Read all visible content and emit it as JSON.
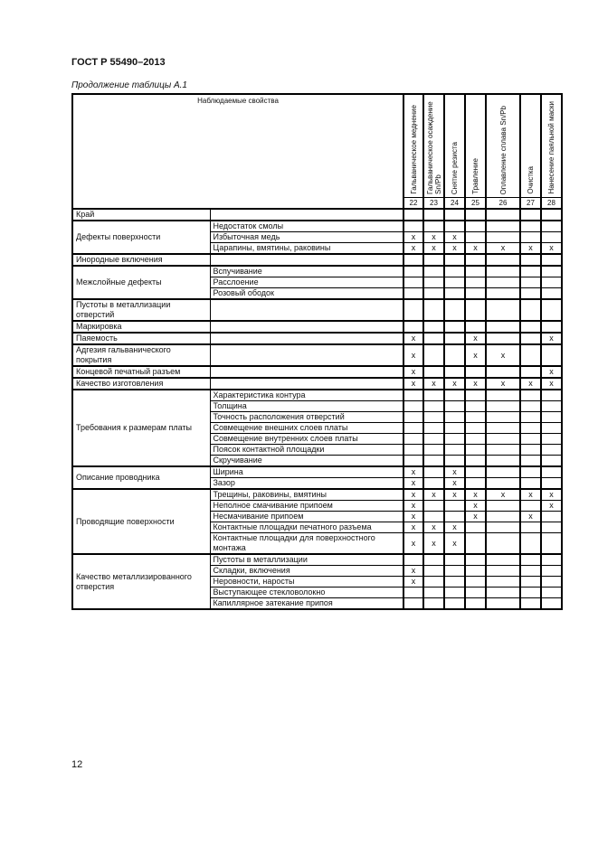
{
  "document": {
    "title": "ГОСТ Р 55490–2013",
    "caption": "Продолжение таблицы А.1",
    "page_number": "12"
  },
  "table": {
    "properties_header": "Наблюдаемые свойства",
    "columns": [
      {
        "label": "Гальваническое меднение",
        "number": "22"
      },
      {
        "label": "Гальваническое осаждение Sn/Pb",
        "number": "23"
      },
      {
        "label": "Снятие резиста",
        "number": "24"
      },
      {
        "label": "Травление",
        "number": "25"
      },
      {
        "label": "Оплавление сплава Sn/Pb",
        "number": "26"
      },
      {
        "label": "Очистка",
        "number": "27"
      },
      {
        "label": "Нанесение паяльной маски",
        "number": "28"
      }
    ],
    "groups": [
      {
        "label": "Край",
        "rows": [
          {
            "label": "",
            "marks": [
              "",
              "",
              "",
              "",
              "",
              "",
              ""
            ]
          }
        ]
      },
      {
        "label": "Дефекты поверхности",
        "rows": [
          {
            "label": "Недостаток смолы",
            "marks": [
              "",
              "",
              "",
              "",
              "",
              "",
              ""
            ]
          },
          {
            "label": "Избыточная медь",
            "marks": [
              "x",
              "x",
              "x",
              "",
              "",
              "",
              ""
            ]
          },
          {
            "label": "Царапины, вмятины, раковины",
            "marks": [
              "x",
              "x",
              "x",
              "x",
              "x",
              "x",
              "x"
            ]
          }
        ]
      },
      {
        "label": "Инородные включения",
        "rows": [
          {
            "label": "",
            "marks": [
              "",
              "",
              "",
              "",
              "",
              "",
              ""
            ]
          }
        ]
      },
      {
        "label": "Межслойные дефекты",
        "rows": [
          {
            "label": "Вспучивание",
            "marks": [
              "",
              "",
              "",
              "",
              "",
              "",
              ""
            ]
          },
          {
            "label": "Расслоение",
            "marks": [
              "",
              "",
              "",
              "",
              "",
              "",
              ""
            ]
          },
          {
            "label": "Розовый ободок",
            "marks": [
              "",
              "",
              "",
              "",
              "",
              "",
              ""
            ]
          }
        ]
      },
      {
        "label": "Пустоты в металлизации отверстий",
        "tall": true,
        "rows": [
          {
            "label": "",
            "marks": [
              "",
              "",
              "",
              "",
              "",
              "",
              ""
            ]
          }
        ]
      },
      {
        "label": "Маркировка",
        "rows": [
          {
            "label": "",
            "marks": [
              "",
              "",
              "",
              "",
              "",
              "",
              ""
            ]
          }
        ]
      },
      {
        "label": "Паяемость",
        "rows": [
          {
            "label": "",
            "marks": [
              "x",
              "",
              "",
              "x",
              "",
              "",
              "x"
            ]
          }
        ]
      },
      {
        "label": "Адгезия гальванического покрытия",
        "tall": true,
        "rows": [
          {
            "label": "",
            "marks": [
              "x",
              "",
              "",
              "x",
              "x",
              "",
              ""
            ]
          }
        ]
      },
      {
        "label": "Концевой печатный разъем",
        "rows": [
          {
            "label": "",
            "marks": [
              "x",
              "",
              "",
              "",
              "",
              "",
              "x"
            ]
          }
        ]
      },
      {
        "label": "Качество изготовления",
        "rows": [
          {
            "label": "",
            "marks": [
              "x",
              "x",
              "x",
              "x",
              "x",
              "x",
              "x"
            ]
          }
        ]
      },
      {
        "label": "Требования к размерам платы",
        "rows": [
          {
            "label": "Характеристика контура",
            "marks": [
              "",
              "",
              "",
              "",
              "",
              "",
              ""
            ]
          },
          {
            "label": "Толщина",
            "marks": [
              "",
              "",
              "",
              "",
              "",
              "",
              ""
            ]
          },
          {
            "label": "Точность расположения отверстий",
            "marks": [
              "",
              "",
              "",
              "",
              "",
              "",
              ""
            ]
          },
          {
            "label": "Совмещение внешних слоев платы",
            "marks": [
              "",
              "",
              "",
              "",
              "",
              "",
              ""
            ]
          },
          {
            "label": "Совмещение внутренних слоев платы",
            "marks": [
              "",
              "",
              "",
              "",
              "",
              "",
              ""
            ]
          },
          {
            "label": "Поясок контактной площадки",
            "marks": [
              "",
              "",
              "",
              "",
              "",
              "",
              ""
            ]
          },
          {
            "label": "Скручивание",
            "marks": [
              "",
              "",
              "",
              "",
              "",
              "",
              ""
            ]
          }
        ]
      },
      {
        "label": "Описание проводника",
        "rows": [
          {
            "label": "Ширина",
            "marks": [
              "x",
              "",
              "x",
              "",
              "",
              "",
              ""
            ]
          },
          {
            "label": "Зазор",
            "marks": [
              "x",
              "",
              "x",
              "",
              "",
              "",
              ""
            ]
          }
        ]
      },
      {
        "label": "Проводящие поверхности",
        "rows": [
          {
            "label": "Трещины, раковины, вмятины",
            "marks": [
              "x",
              "x",
              "x",
              "x",
              "x",
              "x",
              "x"
            ]
          },
          {
            "label": "Неполное смачивание припоем",
            "marks": [
              "x",
              "",
              "",
              "x",
              "",
              "",
              "x"
            ]
          },
          {
            "label": "Несмачивание припоем",
            "marks": [
              "x",
              "",
              "",
              "x",
              "",
              "x",
              ""
            ]
          },
          {
            "label": "Контактные площадки печатного разъема",
            "marks": [
              "x",
              "x",
              "x",
              "",
              "",
              "",
              ""
            ]
          },
          {
            "label": "Контактные площадки для поверхностного монтажа",
            "tall": true,
            "marks": [
              "x",
              "x",
              "x",
              "",
              "",
              "",
              ""
            ]
          }
        ]
      },
      {
        "label": "Качество металлизированного отверстия",
        "rows": [
          {
            "label": "Пустоты в металлизации",
            "marks": [
              "",
              "",
              "",
              "",
              "",
              "",
              ""
            ]
          },
          {
            "label": "Складки, включения",
            "marks": [
              "x",
              "",
              "",
              "",
              "",
              "",
              ""
            ]
          },
          {
            "label": "Неровности, наросты",
            "marks": [
              "x",
              "",
              "",
              "",
              "",
              "",
              ""
            ]
          },
          {
            "label": "Выступающее стекловолокно",
            "marks": [
              "",
              "",
              "",
              "",
              "",
              "",
              ""
            ]
          },
          {
            "label": "Капиллярное затекание припоя",
            "marks": [
              "",
              "",
              "",
              "",
              "",
              "",
              ""
            ]
          }
        ]
      }
    ]
  }
}
